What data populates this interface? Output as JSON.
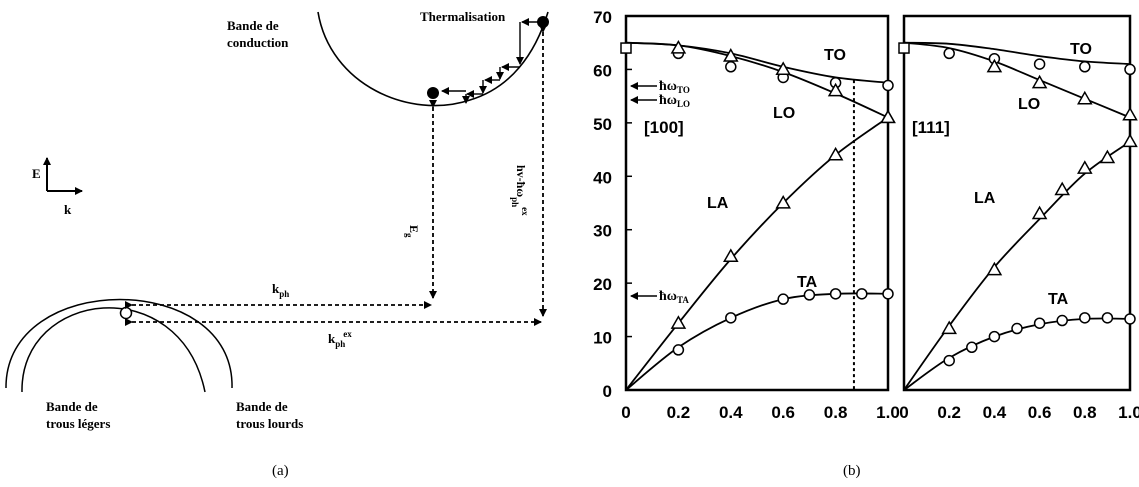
{
  "panel_a": {
    "caption": "(a)",
    "conduction_band_label": [
      "Bande de",
      "conduction"
    ],
    "thermalisation_label": "Thermalisation",
    "axis_e_label": "E",
    "axis_k_label": "k",
    "eg_label": "E",
    "eg_sub": "g",
    "hv_label": "hv-ħω",
    "hv_sub": "ph",
    "hv_sup": "ex",
    "kph_label": "k",
    "kph_sub": "ph",
    "kphex_label": "k",
    "kphex_sub": "ph",
    "kphex_sup": "ex",
    "light_holes_label": [
      "Bande de",
      "trous légers"
    ],
    "heavy_holes_label": [
      "Bande de",
      "trous lourds"
    ]
  },
  "panel_b": {
    "caption": "(b)",
    "y_ticks": [
      "0",
      "10",
      "20",
      "30",
      "40",
      "50",
      "60",
      "70"
    ],
    "x_ticks": [
      "0",
      "0.2",
      "0.4",
      "0.6",
      "0.8",
      "1.0"
    ],
    "left_direction_label": "[100]",
    "right_direction_label": "[111]",
    "branch_labels": {
      "to": "TO",
      "lo": "LO",
      "la": "LA",
      "ta": "TA"
    },
    "energy_labels": {
      "to": {
        "main": "ħω",
        "sub": "TO"
      },
      "lo": {
        "main": "ħω",
        "sub": "LO"
      },
      "ta": {
        "main": "ħω",
        "sub": "TA"
      }
    }
  },
  "chart_data": [
    {
      "type": "line",
      "direction": "[100]",
      "xlim": [
        0,
        1.0
      ],
      "ylim": [
        0,
        70
      ],
      "x_ticks": [
        0,
        0.2,
        0.4,
        0.6,
        0.8,
        1.0
      ],
      "y_ticks": [
        0,
        10,
        20,
        30,
        40,
        50,
        60,
        70
      ],
      "grid": false,
      "series": [
        {
          "name": "TO",
          "curve": [
            [
              0,
              65
            ],
            [
              0.2,
              64.5
            ],
            [
              0.4,
              63
            ],
            [
              0.6,
              60.5
            ],
            [
              0.8,
              58.5
            ],
            [
              1.0,
              57.5
            ]
          ],
          "points": [
            [
              0.2,
              63
            ],
            [
              0.4,
              60.5
            ],
            [
              0.6,
              58.5
            ],
            [
              0.8,
              57.5
            ],
            [
              1.0,
              57
            ]
          ],
          "marker": "circle"
        },
        {
          "name": "LO",
          "curve": [
            [
              0,
              65
            ],
            [
              0.2,
              64.5
            ],
            [
              0.4,
              62.5
            ],
            [
              0.6,
              59.5
            ],
            [
              0.8,
              55.5
            ],
            [
              1.0,
              51
            ]
          ],
          "points": [
            [
              0.2,
              64
            ],
            [
              0.4,
              62.5
            ],
            [
              0.6,
              60
            ],
            [
              0.8,
              56
            ],
            [
              1.0,
              51
            ]
          ],
          "marker": "triangle"
        },
        {
          "name": "LA",
          "curve": [
            [
              0,
              0
            ],
            [
              0.2,
              12.5
            ],
            [
              0.4,
              24.5
            ],
            [
              0.6,
              35
            ],
            [
              0.8,
              44
            ],
            [
              1.0,
              51
            ]
          ],
          "points": [
            [
              0.2,
              12.5
            ],
            [
              0.4,
              25
            ],
            [
              0.6,
              35
            ],
            [
              0.8,
              44
            ],
            [
              1.0,
              51
            ]
          ],
          "marker": "triangle"
        },
        {
          "name": "TA",
          "curve": [
            [
              0,
              0
            ],
            [
              0.2,
              8
            ],
            [
              0.4,
              13.5
            ],
            [
              0.6,
              17
            ],
            [
              0.8,
              18
            ],
            [
              1.0,
              18
            ]
          ],
          "points": [
            [
              0.2,
              7.5
            ],
            [
              0.4,
              13.5
            ],
            [
              0.6,
              17
            ],
            [
              0.7,
              17.8
            ],
            [
              0.8,
              18
            ],
            [
              0.9,
              18
            ],
            [
              1.0,
              18
            ]
          ],
          "marker": "circle"
        }
      ],
      "gamma_point": [
        0,
        64
      ],
      "dotted_vertical_x": 0.87,
      "energy_markers": [
        {
          "label": "ħω_TO",
          "y": 57.5
        },
        {
          "label": "ħω_LO",
          "y": 55.5
        },
        {
          "label": "ħω_TA",
          "y": 18
        }
      ]
    },
    {
      "type": "line",
      "direction": "[111]",
      "xlim": [
        0,
        1.0
      ],
      "ylim": [
        0,
        70
      ],
      "x_ticks": [
        0,
        0.2,
        0.4,
        0.6,
        0.8,
        1.0
      ],
      "y_ticks": [
        0,
        10,
        20,
        30,
        40,
        50,
        60,
        70
      ],
      "grid": false,
      "series": [
        {
          "name": "TO",
          "curve": [
            [
              0,
              65
            ],
            [
              0.2,
              64.8
            ],
            [
              0.4,
              63.8
            ],
            [
              0.6,
              62.5
            ],
            [
              0.8,
              61.5
            ],
            [
              1.0,
              61
            ]
          ],
          "points": [
            [
              0.2,
              63
            ],
            [
              0.4,
              62
            ],
            [
              0.6,
              61
            ],
            [
              0.8,
              60.5
            ],
            [
              1.0,
              60
            ]
          ],
          "marker": "circle"
        },
        {
          "name": "LO",
          "curve": [
            [
              0,
              65
            ],
            [
              0.2,
              64
            ],
            [
              0.4,
              61.5
            ],
            [
              0.6,
              58
            ],
            [
              0.8,
              54.5
            ],
            [
              1.0,
              51
            ]
          ],
          "points": [
            [
              0.4,
              60.5
            ],
            [
              0.6,
              57.5
            ],
            [
              0.8,
              54.5
            ],
            [
              1.0,
              51.5
            ]
          ],
          "marker": "triangle"
        },
        {
          "name": "LA",
          "curve": [
            [
              0,
              0
            ],
            [
              0.2,
              12
            ],
            [
              0.4,
              23
            ],
            [
              0.6,
              32
            ],
            [
              0.8,
              40.5
            ],
            [
              1.0,
              46.5
            ]
          ],
          "points": [
            [
              0.2,
              11.5
            ],
            [
              0.4,
              22.5
            ],
            [
              0.6,
              33
            ],
            [
              0.7,
              37.5
            ],
            [
              0.8,
              41.5
            ],
            [
              0.9,
              43.5
            ],
            [
              1.0,
              46.5
            ]
          ],
          "marker": "triangle"
        },
        {
          "name": "TA",
          "curve": [
            [
              0,
              0
            ],
            [
              0.2,
              6
            ],
            [
              0.4,
              10
            ],
            [
              0.6,
              12.3
            ],
            [
              0.8,
              13.3
            ],
            [
              1.0,
              13.3
            ]
          ],
          "points": [
            [
              0.2,
              5.5
            ],
            [
              0.3,
              8
            ],
            [
              0.4,
              10
            ],
            [
              0.5,
              11.5
            ],
            [
              0.6,
              12.5
            ],
            [
              0.7,
              13
            ],
            [
              0.8,
              13.5
            ],
            [
              0.9,
              13.5
            ],
            [
              1.0,
              13.3
            ]
          ],
          "marker": "circle"
        }
      ],
      "gamma_point": [
        0,
        64
      ]
    }
  ]
}
